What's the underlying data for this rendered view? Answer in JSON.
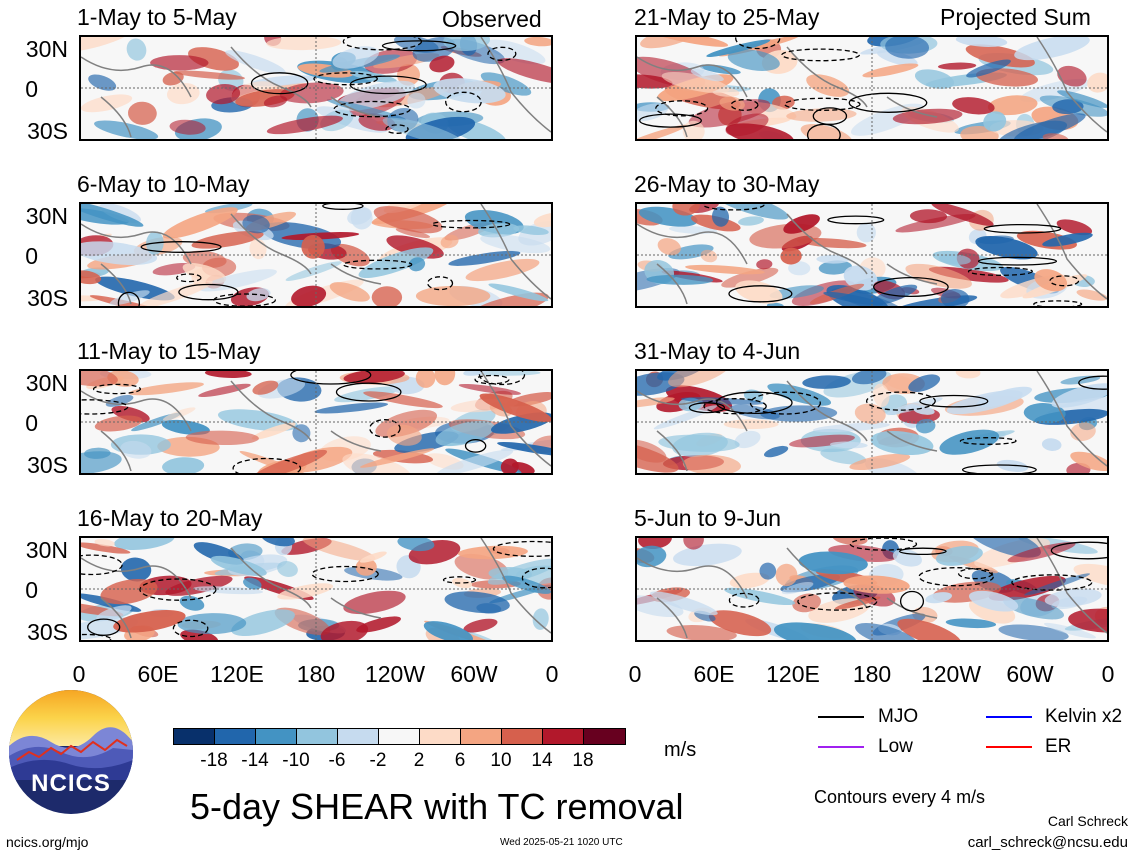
{
  "header": {
    "left_label": "Observed",
    "right_label": "Projected Sum"
  },
  "panels": {
    "left": [
      {
        "title": "1-May to 5-May"
      },
      {
        "title": "6-May to 10-May"
      },
      {
        "title": "11-May to 15-May"
      },
      {
        "title": "16-May to 20-May"
      }
    ],
    "right": [
      {
        "title": "21-May to 25-May"
      },
      {
        "title": "26-May to 30-May"
      },
      {
        "title": "31-May to 4-Jun"
      },
      {
        "title": "5-Jun to 9-Jun"
      }
    ]
  },
  "axes": {
    "lat_labels": [
      "30N",
      "0",
      "30S"
    ],
    "lon_labels": [
      "0",
      "60E",
      "120E",
      "180",
      "120W",
      "60W",
      "0"
    ]
  },
  "colorbar": {
    "unit": "m/s",
    "labels": [
      "-18",
      "-14",
      "-10",
      "-6",
      "-2",
      "2",
      "6",
      "10",
      "14",
      "18"
    ],
    "colors": [
      "#08306b",
      "#2166ac",
      "#4393c3",
      "#92c5de",
      "#c6dbef",
      "#f7f7f7",
      "#fddbc7",
      "#f4a582",
      "#d6604d",
      "#b2182b",
      "#67001f"
    ]
  },
  "legend": {
    "items": [
      {
        "label": "MJO",
        "color": "#000000"
      },
      {
        "label": "Kelvin x2",
        "color": "#0000ff"
      },
      {
        "label": "Low",
        "color": "#a020f0"
      },
      {
        "label": "ER",
        "color": "#ff0000"
      }
    ],
    "contour_note": "Contours every 4 m/s"
  },
  "title": "5-day SHEAR with TC removal",
  "footer": {
    "site": "ncics.org/mjo",
    "timestamp": "Wed 2025-05-21 1020 UTC",
    "author": "Carl Schreck",
    "email": "carl_schreck@ncsu.edu"
  },
  "logo": {
    "text": "NCICS"
  }
}
